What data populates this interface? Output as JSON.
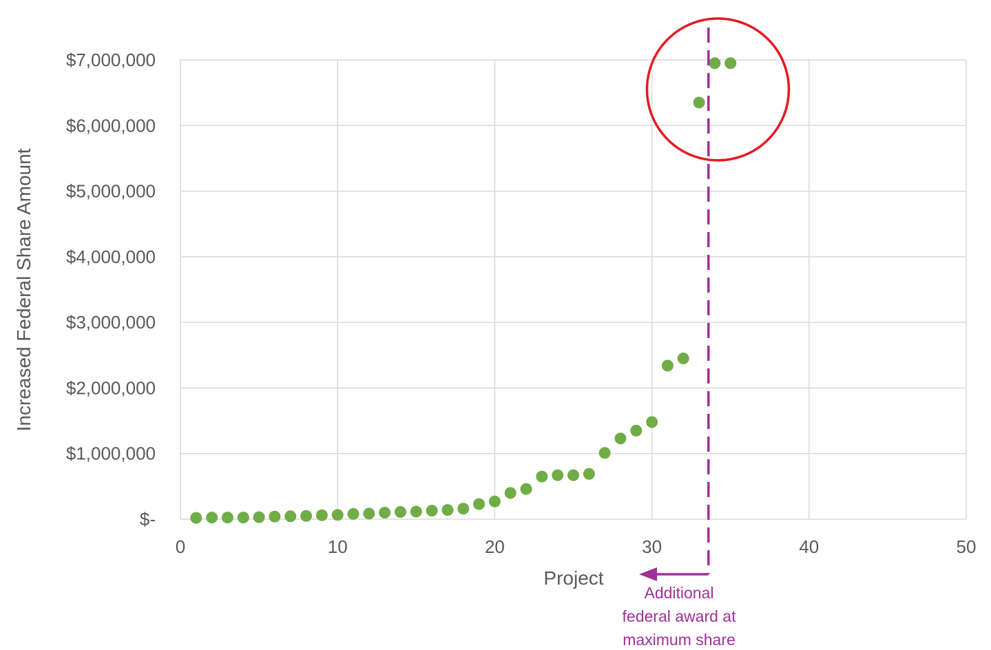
{
  "chart_data": {
    "type": "scatter",
    "title": "",
    "xlabel": "Project",
    "ylabel": "Increased Federal Share Amount",
    "xlim": [
      0,
      50
    ],
    "ylim": [
      0,
      7000000
    ],
    "xticks": [
      0,
      10,
      20,
      30,
      40,
      50
    ],
    "x_tick_labels": [
      "0",
      "10",
      "20",
      "30",
      "40",
      "50"
    ],
    "yticks": [
      0,
      1000000,
      2000000,
      3000000,
      4000000,
      5000000,
      6000000,
      7000000
    ],
    "y_tick_labels": [
      "$-",
      "$1,000,000",
      "$2,000,000",
      "$3,000,000",
      "$4,000,000",
      "$5,000,000",
      "$6,000,000",
      "$7,000,000"
    ],
    "grid": true,
    "legend": "none",
    "series": [
      {
        "color": "#70ad47",
        "x": [
          1,
          2,
          3,
          4,
          5,
          6,
          7,
          8,
          9,
          10,
          11,
          12,
          13,
          14,
          15,
          16,
          17,
          18,
          19,
          20,
          21,
          22,
          23,
          24,
          25,
          26,
          27,
          28,
          29,
          30,
          31,
          32,
          33,
          34,
          35
        ],
        "y": [
          20000,
          25000,
          25000,
          25000,
          30000,
          40000,
          45000,
          50000,
          60000,
          65000,
          80000,
          85000,
          100000,
          110000,
          115000,
          130000,
          140000,
          160000,
          230000,
          270000,
          400000,
          460000,
          650000,
          670000,
          670000,
          690000,
          1010000,
          1230000,
          1350000,
          1480000,
          2340000,
          2450000,
          6350000,
          6950000,
          6950000
        ]
      }
    ],
    "annotations": {
      "threshold_line": {
        "x": 33.6,
        "style": "dashed",
        "color": "#a0309a"
      },
      "arrow_text": [
        "Additional",
        "federal award at",
        "maximum share"
      ],
      "highlight_circle": {
        "center_x": 34.2,
        "center_y": 6550000,
        "color": "#e31b23"
      }
    }
  }
}
